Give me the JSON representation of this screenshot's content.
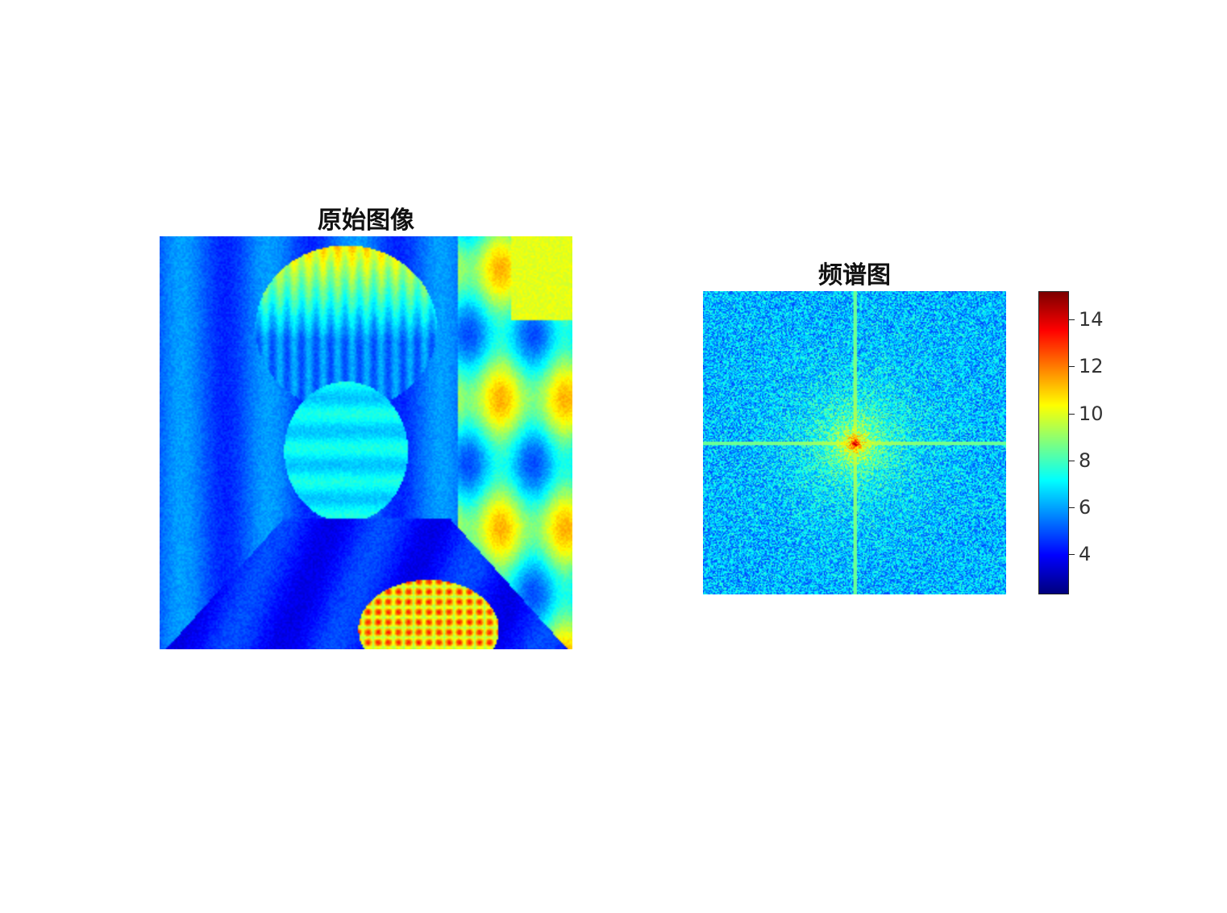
{
  "chart_data": [
    {
      "type": "heatmap",
      "title": "原始图像",
      "colormap": "jet"
    },
    {
      "type": "heatmap",
      "title": "频谱图",
      "colormap": "jet",
      "colorbar": {
        "range": [
          2.3,
          15.2
        ],
        "ticks": [
          4,
          6,
          8,
          10,
          12,
          14
        ],
        "tick_labels": [
          "4",
          "6",
          "8",
          "10",
          "12",
          "14"
        ]
      }
    }
  ]
}
